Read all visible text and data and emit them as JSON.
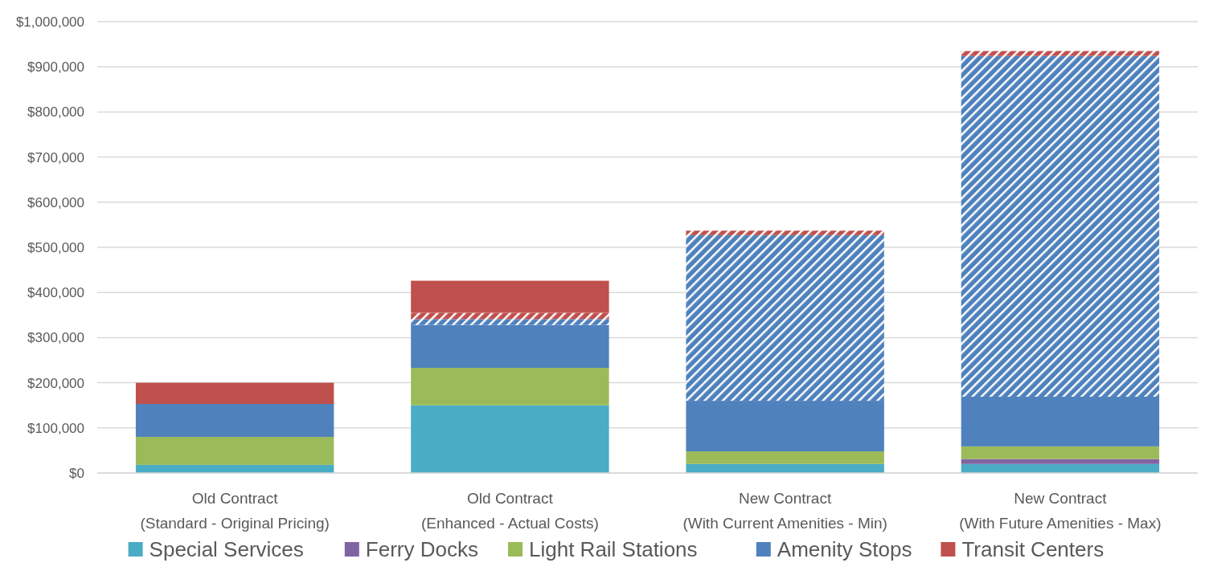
{
  "chart_data": {
    "type": "bar",
    "stacked": true,
    "categories": [
      "Old Contract\n(Standard - Original Pricing)",
      "Old Contract\n(Enhanced - Actual Costs)",
      "New Contract\n(With Current Amenities - Min)",
      "New Contract\n(With Future Amenities - Max)"
    ],
    "series": [
      {
        "name": "Special Services",
        "color": "#4bacc6",
        "values": [
          18000,
          150000,
          20000,
          20000
        ]
      },
      {
        "name": "Ferry Docks",
        "color": "#8064a2",
        "values": [
          0,
          0,
          0,
          11000
        ]
      },
      {
        "name": "Light Rail Stations",
        "color": "#9bbb59",
        "values": [
          62000,
          83000,
          28000,
          28000
        ]
      },
      {
        "name": "Amenity Stops",
        "color": "#4f81bd",
        "values": [
          73000,
          95000,
          112000,
          110000
        ]
      },
      {
        "color": "#4f81bd",
        "values": [
          0,
          13000,
          367000,
          755000
        ]
      },
      {
        "color": "#c0504d",
        "values": [
          0,
          14000,
          10000,
          11000
        ]
      },
      {
        "name": "Transit Centers",
        "color": "#c0504d",
        "values": [
          47000,
          71000,
          0,
          0
        ]
      }
    ],
    "ylim": [
      0,
      1000000
    ],
    "yticks": [
      {
        "value": 0,
        "label": "$0"
      },
      {
        "value": 100000,
        "label": "$100,000"
      },
      {
        "value": 200000,
        "label": "$200,000"
      },
      {
        "value": 300000,
        "label": "$300,000"
      },
      {
        "value": 400000,
        "label": "$400,000"
      },
      {
        "value": 500000,
        "label": "$500,000"
      },
      {
        "value": 600000,
        "label": "$600,000"
      },
      {
        "value": 700000,
        "label": "$700,000"
      },
      {
        "value": 800000,
        "label": "$800,000"
      },
      {
        "value": 900000,
        "label": "$900,000"
      },
      {
        "value": 1000000,
        "label": "$1,000,000"
      }
    ],
    "grid": "y",
    "legend": "bottom"
  }
}
